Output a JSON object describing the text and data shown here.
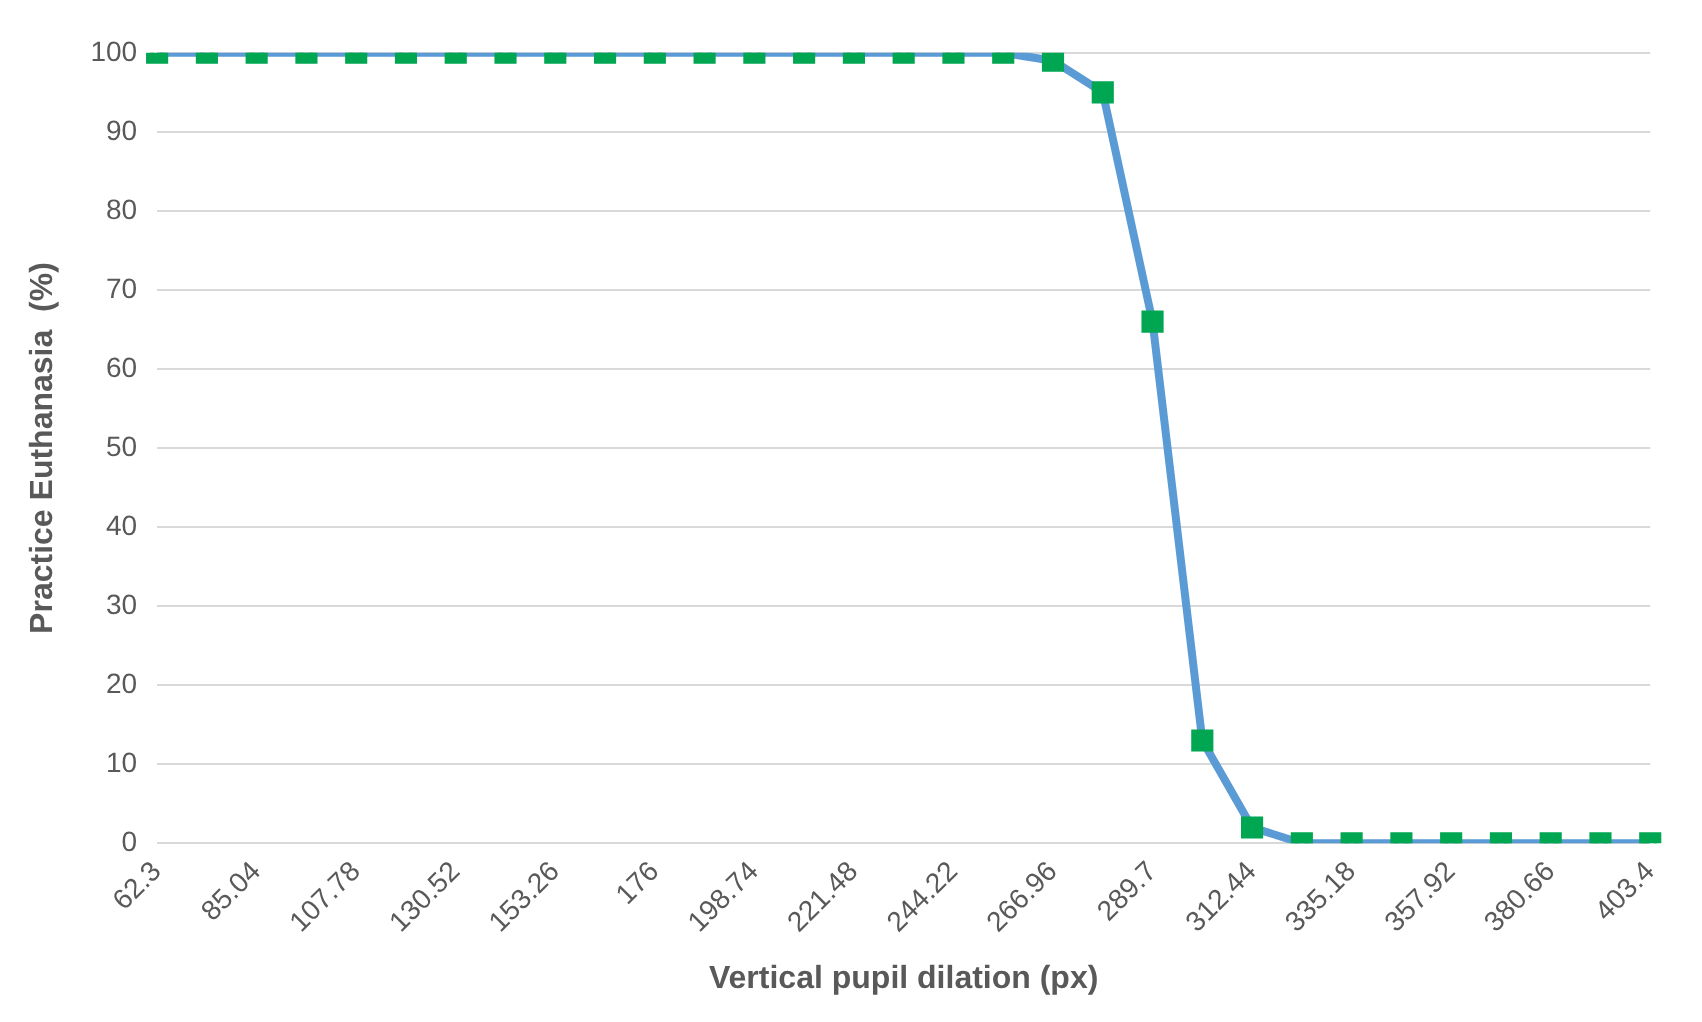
{
  "chart_data": {
    "type": "line",
    "xlabel": "Vertical pupil dilation (px)",
    "ylabel": "Practice Euthanasia  (%)",
    "categories": [
      "62.3",
      null,
      "85.04",
      null,
      "107.78",
      null,
      "130.52",
      null,
      "153.26",
      null,
      "176",
      null,
      "198.74",
      null,
      "221.48",
      null,
      "244.22",
      null,
      "266.96",
      null,
      "289.7",
      null,
      "312.44",
      null,
      "335.18",
      null,
      "357.92",
      null,
      "380.66",
      null,
      "403.4"
    ],
    "series": [
      {
        "color": "#5b9bd5",
        "colors": [
          "#00a651",
          "#00a651",
          "#00a651",
          "#00a651",
          "#00a651",
          "#00a651",
          "#00a651",
          "#00a651",
          "#00a651",
          "#00a651",
          "#00a651",
          "#00a651",
          "#00a651",
          "#00a651",
          "#00a651",
          "#00a651",
          "#00a651",
          "#00a651",
          "#00a651",
          "#00a651",
          "#00a651",
          "#00a651",
          "#00a651",
          "#00a651",
          "#00a651",
          "#00a651",
          "#00a651",
          "#00a651",
          "#00a651",
          "#00a651",
          "#00a651"
        ],
        "values": [
          100,
          100,
          100,
          100,
          100,
          100,
          100,
          100,
          100,
          100,
          100,
          100,
          100,
          100,
          100,
          100,
          100,
          100,
          99,
          95,
          66,
          13,
          2,
          0,
          0,
          0,
          0,
          0,
          0,
          0,
          0
        ]
      }
    ],
    "ylim": [
      0,
      100
    ],
    "yticks": [
      0,
      10,
      20,
      30,
      40,
      50,
      60,
      70,
      80,
      90,
      100
    ],
    "grid": "y",
    "legend": false,
    "marker": "square",
    "line_style": "solid"
  }
}
